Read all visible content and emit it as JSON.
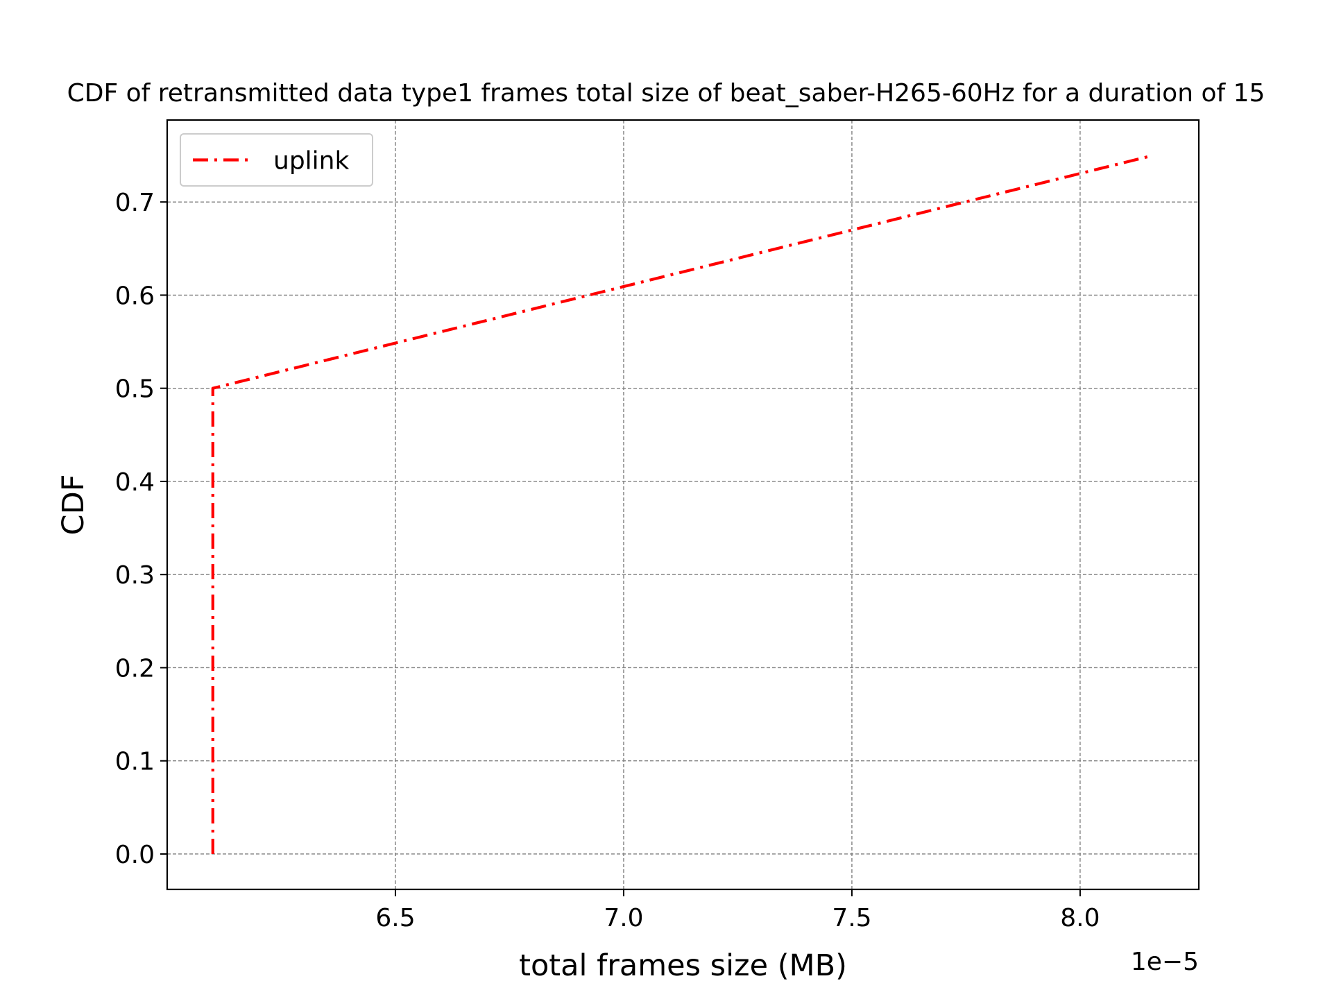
{
  "chart_data": {
    "type": "line",
    "title": "CDF of retransmitted data type1 frames total size of beat_saber-H265-60Hz for a duration of 15",
    "xlabel": "total frames size (MB)",
    "ylabel": "CDF",
    "x_offset_label": "1e−5",
    "xlim": [
      6.0,
      8.26
    ],
    "ylim": [
      -0.038,
      0.788
    ],
    "x_scale_factor": 1e-05,
    "grid": true,
    "legend_position": "upper left",
    "x_ticks": [
      {
        "value": 6.5,
        "label": "6.5"
      },
      {
        "value": 7.0,
        "label": "7.0"
      },
      {
        "value": 7.5,
        "label": "7.5"
      },
      {
        "value": 8.0,
        "label": "8.0"
      }
    ],
    "y_ticks": [
      {
        "value": 0.0,
        "label": "0.0"
      },
      {
        "value": 0.1,
        "label": "0.1"
      },
      {
        "value": 0.2,
        "label": "0.2"
      },
      {
        "value": 0.3,
        "label": "0.3"
      },
      {
        "value": 0.4,
        "label": "0.4"
      },
      {
        "value": 0.5,
        "label": "0.5"
      },
      {
        "value": 0.6,
        "label": "0.6"
      },
      {
        "value": 0.7,
        "label": "0.7"
      }
    ],
    "series": [
      {
        "name": "uplink",
        "color": "#ff0000",
        "line_style": "dash-dot",
        "points": [
          {
            "x": 6.1,
            "y": 0.0
          },
          {
            "x": 6.1,
            "y": 0.5
          },
          {
            "x": 8.16,
            "y": 0.75
          }
        ]
      }
    ]
  }
}
